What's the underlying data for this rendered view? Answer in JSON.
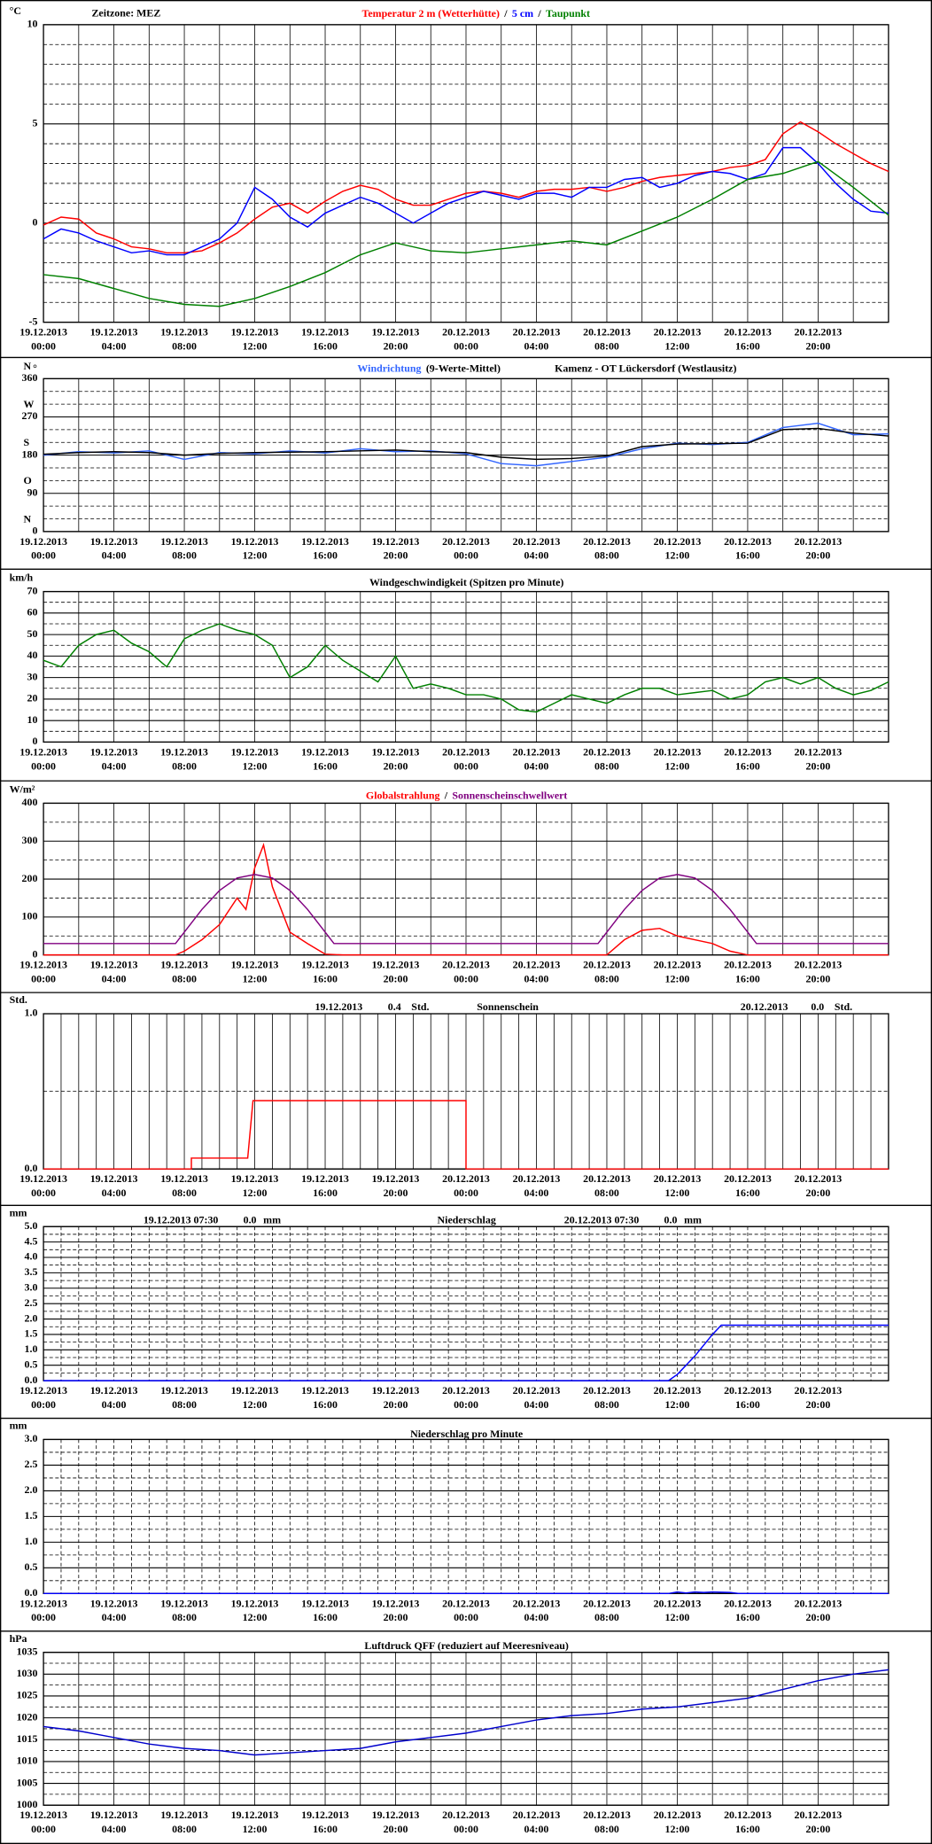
{
  "time_axis": {
    "xlim": [
      0,
      48
    ],
    "xticks": [
      {
        "value": 0,
        "label": "19.12.2013 00:00"
      },
      {
        "value": 4,
        "label": "19.12.2013 04:00"
      },
      {
        "value": 8,
        "label": "19.12.2013 08:00"
      },
      {
        "value": 12,
        "label": "19.12.2013 12:00"
      },
      {
        "value": 16,
        "label": "19.12.2013 16:00"
      },
      {
        "value": 20,
        "label": "19.12.2013 20:00"
      },
      {
        "value": 24,
        "label": "20.12.2013 00:00"
      },
      {
        "value": 28,
        "label": "20.12.2013 04:00"
      },
      {
        "value": 32,
        "label": "20.12.2013 08:00"
      },
      {
        "value": 36,
        "label": "20.12.2013 12:00"
      },
      {
        "value": 40,
        "label": "20.12.2013 16:00"
      },
      {
        "value": 44,
        "label": "20.12.2013 20:00"
      }
    ],
    "grid_2h": [
      0,
      2,
      4,
      6,
      8,
      10,
      12,
      14,
      16,
      18,
      20,
      22,
      24,
      26,
      28,
      30,
      32,
      34,
      36,
      38,
      40,
      42,
      44,
      46,
      48
    ],
    "grid_1h": [
      0,
      1,
      2,
      3,
      4,
      5,
      6,
      7,
      8,
      9,
      10,
      11,
      12,
      13,
      14,
      15,
      16,
      17,
      18,
      19,
      20,
      21,
      22,
      23,
      24,
      25,
      26,
      27,
      28,
      29,
      30,
      31,
      32,
      33,
      34,
      35,
      36,
      37,
      38,
      39,
      40,
      41,
      42,
      43,
      44,
      45,
      46,
      47,
      48
    ]
  },
  "chart_data": [
    {
      "type": "line",
      "y_unit": "°C",
      "annotations": [
        "Zeitzone: MEZ"
      ],
      "legend_separator": "/",
      "ylim": [
        -5,
        10
      ],
      "yticks": [
        -5,
        0,
        5,
        10
      ],
      "ygrid": [
        -4,
        -3,
        -2,
        -1,
        1,
        2,
        3,
        4,
        6,
        7,
        8,
        9
      ],
      "xgrid": "grid_2h",
      "series": [
        {
          "name": "Temperatur 2 m (Wetterhütte)",
          "color": "#ff0000",
          "x": [
            0,
            1,
            2,
            3,
            4,
            5,
            6,
            7,
            8,
            9,
            10,
            11,
            12,
            13,
            14,
            15,
            16,
            17,
            18,
            19,
            20,
            21,
            22,
            23,
            24,
            25,
            26,
            27,
            28,
            29,
            30,
            31,
            32,
            33,
            34,
            35,
            36,
            37,
            38,
            39,
            40,
            41,
            42,
            43,
            44,
            45,
            46,
            47,
            48
          ],
          "values": [
            -0.1,
            0.3,
            0.2,
            -0.5,
            -0.8,
            -1.2,
            -1.3,
            -1.5,
            -1.5,
            -1.4,
            -1.0,
            -0.5,
            0.2,
            0.8,
            1.0,
            0.5,
            1.1,
            1.6,
            1.9,
            1.7,
            1.2,
            0.9,
            0.9,
            1.2,
            1.5,
            1.6,
            1.5,
            1.3,
            1.6,
            1.7,
            1.7,
            1.8,
            1.6,
            1.8,
            2.1,
            2.3,
            2.4,
            2.5,
            2.6,
            2.8,
            2.9,
            3.2,
            4.5,
            5.1,
            4.6,
            4.0,
            3.5,
            3.0,
            2.6
          ]
        },
        {
          "name": "5 cm",
          "color": "#0000ff",
          "x": [
            0,
            1,
            2,
            3,
            4,
            5,
            6,
            7,
            8,
            9,
            10,
            11,
            12,
            13,
            14,
            15,
            16,
            17,
            18,
            19,
            20,
            21,
            22,
            23,
            24,
            25,
            26,
            27,
            28,
            29,
            30,
            31,
            32,
            33,
            34,
            35,
            36,
            37,
            38,
            39,
            40,
            41,
            42,
            43,
            44,
            45,
            46,
            47,
            48
          ],
          "values": [
            -0.8,
            -0.3,
            -0.5,
            -0.9,
            -1.2,
            -1.5,
            -1.4,
            -1.6,
            -1.6,
            -1.2,
            -0.8,
            0.0,
            1.8,
            1.2,
            0.3,
            -0.2,
            0.5,
            0.9,
            1.3,
            1.0,
            0.5,
            0.0,
            0.5,
            1.0,
            1.3,
            1.6,
            1.4,
            1.2,
            1.5,
            1.5,
            1.3,
            1.8,
            1.8,
            2.2,
            2.3,
            1.8,
            2.0,
            2.4,
            2.6,
            2.5,
            2.2,
            2.5,
            3.8,
            3.8,
            3.0,
            2.0,
            1.2,
            0.6,
            0.5
          ]
        },
        {
          "name": "Taupunkt",
          "color": "#008000",
          "x": [
            0,
            2,
            4,
            6,
            8,
            10,
            12,
            14,
            16,
            18,
            20,
            22,
            24,
            26,
            28,
            30,
            32,
            34,
            36,
            38,
            40,
            42,
            44,
            46,
            48
          ],
          "values": [
            -2.6,
            -2.8,
            -3.3,
            -3.8,
            -4.1,
            -4.2,
            -3.8,
            -3.2,
            -2.5,
            -1.6,
            -1.0,
            -1.4,
            -1.5,
            -1.3,
            -1.1,
            -0.9,
            -1.1,
            -0.4,
            0.3,
            1.2,
            2.2,
            2.5,
            3.1,
            1.8,
            0.4
          ]
        }
      ]
    },
    {
      "type": "line",
      "y_unit": "°",
      "compass": [
        "N",
        "O",
        "S",
        "W",
        "N"
      ],
      "annotations": [
        "Kamenz - OT Lückersdorf (Westlausitz)"
      ],
      "ylim": [
        0,
        360
      ],
      "yticks": [
        0,
        90,
        180,
        270,
        360
      ],
      "ygrid": [
        30,
        60,
        120,
        150,
        210,
        240,
        300,
        330
      ],
      "xgrid": "grid_2h",
      "series": [
        {
          "name": "Windrichtung",
          "color": "#3366ff",
          "x": [
            0,
            2,
            4,
            6,
            8,
            10,
            12,
            14,
            16,
            18,
            20,
            22,
            24,
            26,
            28,
            30,
            32,
            34,
            36,
            38,
            40,
            42,
            44,
            46,
            48
          ],
          "values": [
            180,
            188,
            185,
            190,
            170,
            186,
            183,
            190,
            185,
            195,
            188,
            190,
            183,
            160,
            155,
            165,
            175,
            195,
            208,
            205,
            210,
            245,
            255,
            228,
            230
          ]
        },
        {
          "name": "(9-Werte-Mittel)",
          "color": "#000000",
          "x": [
            0,
            2,
            4,
            6,
            8,
            10,
            12,
            14,
            16,
            18,
            20,
            22,
            24,
            26,
            28,
            30,
            32,
            34,
            36,
            38,
            40,
            42,
            44,
            46,
            48
          ],
          "values": [
            182,
            186,
            188,
            186,
            180,
            184,
            186,
            187,
            188,
            190,
            192,
            188,
            186,
            175,
            170,
            172,
            178,
            200,
            206,
            207,
            208,
            240,
            243,
            232,
            225
          ]
        }
      ]
    },
    {
      "type": "line",
      "y_unit": "km/h",
      "title": "Windgeschwindigkeit (Spitzen pro Minute)",
      "ylim": [
        0,
        70
      ],
      "yticks": [
        0,
        10,
        20,
        30,
        40,
        50,
        60,
        70
      ],
      "ygrid": [
        5,
        15,
        25,
        35,
        45,
        55,
        65
      ],
      "xgrid": "grid_2h",
      "series": [
        {
          "color": "#008000",
          "x": [
            0,
            1,
            2,
            3,
            4,
            5,
            6,
            7,
            8,
            9,
            10,
            11,
            12,
            13,
            14,
            15,
            16,
            17,
            18,
            19,
            20,
            21,
            22,
            23,
            24,
            25,
            26,
            27,
            28,
            29,
            30,
            31,
            32,
            33,
            34,
            35,
            36,
            37,
            38,
            39,
            40,
            41,
            42,
            43,
            44,
            45,
            46,
            47,
            48
          ],
          "values": [
            38,
            35,
            45,
            50,
            52,
            46,
            42,
            35,
            48,
            52,
            55,
            52,
            50,
            45,
            30,
            35,
            45,
            38,
            33,
            28,
            40,
            25,
            27,
            25,
            22,
            22,
            20,
            15,
            14,
            18,
            22,
            20,
            18,
            22,
            25,
            25,
            22,
            23,
            24,
            20,
            22,
            28,
            30,
            27,
            30,
            25,
            22,
            24,
            28
          ]
        }
      ]
    },
    {
      "type": "line",
      "y_unit": "W/m²",
      "legend_separator": "/",
      "ylim": [
        0,
        400
      ],
      "yticks": [
        0,
        100,
        200,
        300,
        400
      ],
      "ygrid": [
        50,
        150,
        250,
        350
      ],
      "xgrid": "grid_2h",
      "series": [
        {
          "name": "Globalstrahlung",
          "color": "#ff0000",
          "x": [
            0,
            7.5,
            8,
            9,
            10,
            11,
            11.5,
            12,
            12.5,
            13,
            14,
            15,
            16,
            17,
            32,
            33,
            34,
            35,
            36,
            37,
            38,
            39,
            40,
            48
          ],
          "values": [
            0,
            0,
            10,
            40,
            80,
            150,
            120,
            230,
            290,
            180,
            60,
            30,
            2,
            0,
            0,
            40,
            65,
            70,
            50,
            40,
            30,
            10,
            0,
            0
          ]
        },
        {
          "name": "Sonnenscheinschwellwert",
          "color": "#800080",
          "x": [
            0,
            7.5,
            8,
            9,
            10,
            11,
            12,
            13,
            14,
            15,
            16,
            16.5,
            31.5,
            32,
            33,
            34,
            35,
            36,
            37,
            38,
            39,
            40,
            40.5,
            48
          ],
          "values": [
            30,
            30,
            60,
            120,
            170,
            203,
            212,
            203,
            170,
            120,
            60,
            30,
            30,
            60,
            120,
            170,
            203,
            212,
            203,
            170,
            120,
            60,
            30,
            30
          ]
        }
      ]
    },
    {
      "type": "line",
      "y_unit": "Std.",
      "title": "Sonnenschein",
      "annotations": [
        "19.12.2013",
        "0.4",
        "Std.",
        "20.12.2013",
        "0.0",
        "Std."
      ],
      "ylim": [
        0,
        1
      ],
      "yticks": [
        {
          "value": 0,
          "label": "0.0"
        },
        {
          "value": 1,
          "label": "1.0"
        }
      ],
      "ygrid": [
        0.5
      ],
      "xgrid": "grid_1h",
      "series": [
        {
          "color": "#ff0000",
          "x": [
            0,
            8.4,
            8.4,
            11.6,
            11.9,
            24,
            24,
            48
          ],
          "values": [
            0,
            0,
            0.07,
            0.07,
            0.44,
            0.44,
            0,
            0
          ]
        }
      ]
    },
    {
      "type": "line",
      "y_unit": "mm",
      "title": "Niederschlag",
      "annotations": [
        "19.12.2013 07:30",
        "0.0",
        "mm",
        "20.12.2013 07:30",
        "0.0",
        "mm"
      ],
      "ylim": [
        0,
        5
      ],
      "yticks": [
        {
          "value": 0,
          "label": "0.0"
        },
        0.5,
        {
          "value": 1,
          "label": "1.0"
        },
        1.5,
        {
          "value": 2,
          "label": "2.0"
        },
        2.5,
        {
          "value": 3,
          "label": "3.0"
        },
        3.5,
        {
          "value": 4,
          "label": "4.0"
        },
        4.5,
        {
          "value": 5,
          "label": "5.0"
        }
      ],
      "ygrid": [
        0.25,
        0.75,
        1.25,
        1.75,
        2.25,
        2.75,
        3.25,
        3.75,
        4.25,
        4.75
      ],
      "xgrid": "grid_1h",
      "xgrid_dash": true,
      "series": [
        {
          "color": "#0000ff",
          "x": [
            0,
            35.5,
            36,
            37,
            38,
            38.5,
            48
          ],
          "values": [
            0,
            0,
            0.2,
            0.8,
            1.5,
            1.8,
            1.8
          ]
        }
      ]
    },
    {
      "type": "line",
      "y_unit": "mm",
      "title": "Niederschlag pro Minute",
      "ylim": [
        0,
        3
      ],
      "yticks": [
        {
          "value": 0,
          "label": "0.0"
        },
        0.5,
        {
          "value": 1,
          "label": "1.0"
        },
        1.5,
        {
          "value": 2,
          "label": "2.0"
        },
        2.5,
        {
          "value": 3,
          "label": "3.0"
        }
      ],
      "ygrid": [
        0.25,
        0.75,
        1.25,
        1.75,
        2.25,
        2.75
      ],
      "xgrid": "grid_1h",
      "xgrid_dash": true,
      "series": [
        {
          "color": "#0000ff",
          "x": [
            0,
            35.5,
            36,
            36.5,
            37,
            37.5,
            38,
            39,
            39.5,
            48
          ],
          "values": [
            0,
            0,
            0.03,
            0.01,
            0.03,
            0.02,
            0.03,
            0.02,
            0,
            0
          ]
        }
      ]
    },
    {
      "type": "line",
      "y_unit": "hPa",
      "title": "Luftdruck QFF (reduziert auf Meeresniveau)",
      "ylim": [
        1000,
        1035
      ],
      "yticks": [
        1000,
        1005,
        1010,
        1015,
        1020,
        1025,
        1030,
        1035
      ],
      "ygrid": [
        1002.5,
        1007.5,
        1012.5,
        1017.5,
        1022.5,
        1027.5,
        1032.5
      ],
      "xgrid": "grid_2h",
      "series": [
        {
          "color": "#0000cc",
          "x": [
            0,
            2,
            4,
            6,
            8,
            10,
            12,
            14,
            16,
            18,
            20,
            22,
            24,
            26,
            28,
            30,
            32,
            34,
            36,
            38,
            40,
            42,
            44,
            46,
            48
          ],
          "values": [
            1018,
            1017,
            1015.5,
            1014,
            1013,
            1012.5,
            1011.5,
            1012,
            1012.5,
            1013,
            1014.5,
            1015.5,
            1016.5,
            1018,
            1019.5,
            1020.5,
            1021,
            1022,
            1022.5,
            1023.5,
            1024.5,
            1026.5,
            1028.5,
            1030,
            1031
          ]
        }
      ]
    }
  ]
}
